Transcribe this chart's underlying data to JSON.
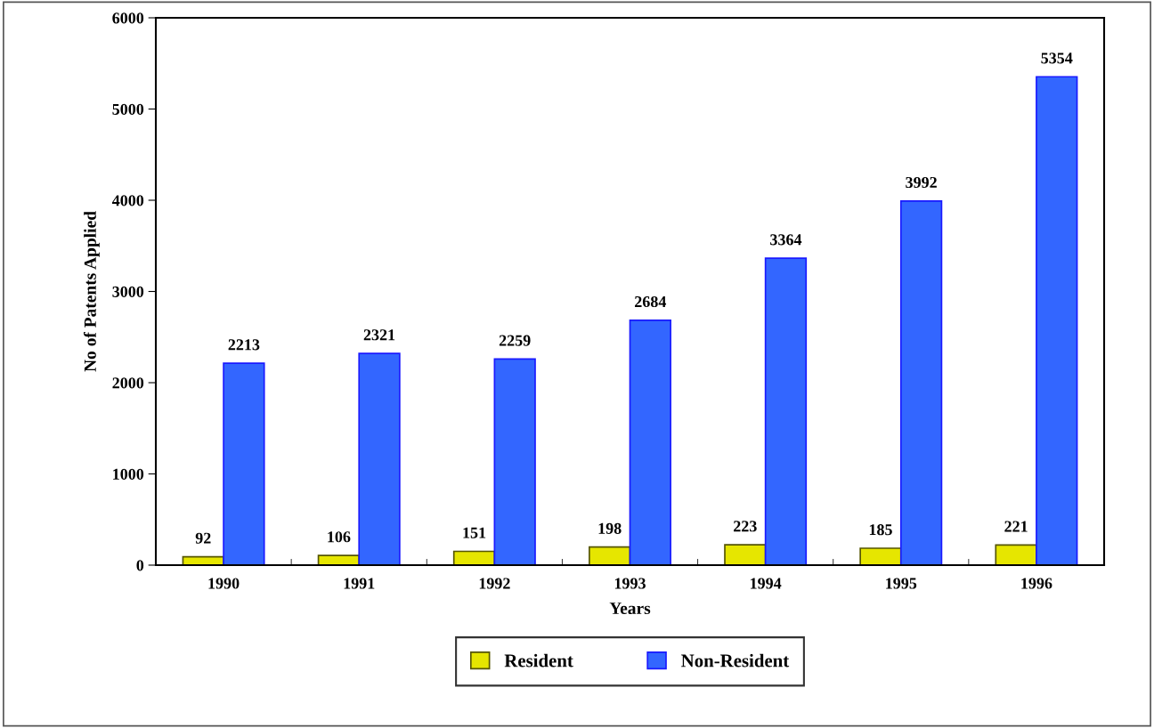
{
  "chart_data": {
    "type": "bar",
    "xlabel": "Years",
    "ylabel": "No of Patents Applied",
    "categories": [
      "1990",
      "1991",
      "1992",
      "1993",
      "1994",
      "1995",
      "1996"
    ],
    "series": [
      {
        "name": "Resident",
        "color": "#e6e600",
        "values": [
          92,
          106,
          151,
          198,
          223,
          185,
          221
        ]
      },
      {
        "name": "Non-Resident",
        "color": "#3366ff",
        "values": [
          2213,
          2321,
          2259,
          2684,
          3364,
          3992,
          5354
        ]
      }
    ],
    "ylim": [
      0,
      6000
    ],
    "yticks": [
      0,
      1000,
      2000,
      3000,
      4000,
      5000,
      6000
    ],
    "data_labels": true,
    "grid": false,
    "legend": "bottom"
  }
}
